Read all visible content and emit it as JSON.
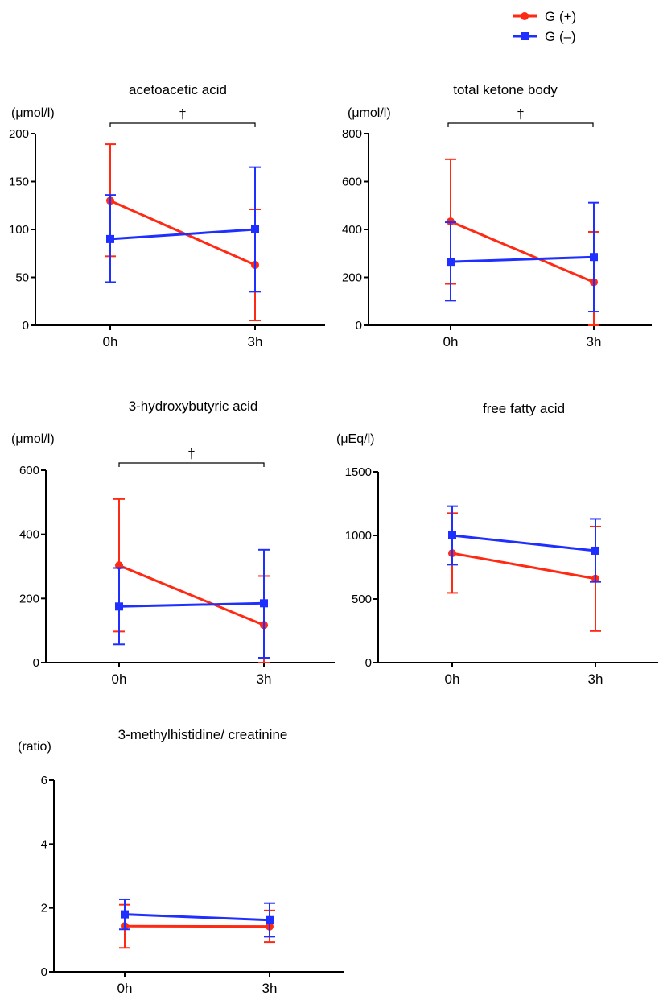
{
  "legend": {
    "entries": [
      {
        "label": "G (+)",
        "color": "#ff2a14",
        "marker": "circle"
      },
      {
        "label": "G (–)",
        "color": "#1e2fff",
        "marker": "square"
      }
    ]
  },
  "colors": {
    "g_plus": "#ff2a14",
    "g_minus": "#1e2fff",
    "axis": "#000000"
  },
  "chart_data": [
    {
      "type": "line",
      "title": "acetoacetic acid",
      "unit": "(μmol/l)",
      "categories": [
        "0h",
        "3h"
      ],
      "ylim": [
        0,
        200
      ],
      "yticks": [
        0,
        50,
        100,
        150,
        200
      ],
      "significance": "†",
      "series": [
        {
          "name": "G (+)",
          "values": [
            130,
            63
          ],
          "err_upper": [
            189,
            121
          ],
          "err_lower": [
            72,
            5
          ]
        },
        {
          "name": "G (–)",
          "values": [
            90,
            100
          ],
          "err_upper": [
            136,
            165
          ],
          "err_lower": [
            45,
            35
          ]
        }
      ]
    },
    {
      "type": "line",
      "title": "total ketone body",
      "unit": "(μmol/l)",
      "categories": [
        "0h",
        "3h"
      ],
      "ylim": [
        0,
        800
      ],
      "yticks": [
        0,
        200,
        400,
        600,
        800
      ],
      "significance": "†",
      "series": [
        {
          "name": "G (+)",
          "values": [
            433,
            180
          ],
          "err_upper": [
            693,
            390
          ],
          "err_lower": [
            173,
            0
          ]
        },
        {
          "name": "G (–)",
          "values": [
            265,
            285
          ],
          "err_upper": [
            430,
            512
          ],
          "err_lower": [
            103,
            57
          ]
        }
      ]
    },
    {
      "type": "line",
      "title": "3-hydroxybutyric acid",
      "unit": "(μmol/l)",
      "categories": [
        "0h",
        "3h"
      ],
      "ylim": [
        0,
        600
      ],
      "yticks": [
        0,
        200,
        400,
        600
      ],
      "significance": "†",
      "series": [
        {
          "name": "G (+)",
          "values": [
            303,
            117
          ],
          "err_upper": [
            510,
            270
          ],
          "err_lower": [
            97,
            0
          ]
        },
        {
          "name": "G (–)",
          "values": [
            175,
            185
          ],
          "err_upper": [
            295,
            352
          ],
          "err_lower": [
            57,
            15
          ]
        }
      ]
    },
    {
      "type": "line",
      "title": "free fatty acid",
      "unit": "(μEq/l)",
      "categories": [
        "0h",
        "3h"
      ],
      "ylim": [
        0,
        1500
      ],
      "yticks": [
        0,
        500,
        1000,
        1500
      ],
      "significance": "",
      "series": [
        {
          "name": "G (+)",
          "values": [
            860,
            660
          ],
          "err_upper": [
            1175,
            1070
          ],
          "err_lower": [
            548,
            248
          ]
        },
        {
          "name": "G (–)",
          "values": [
            1000,
            880
          ],
          "err_upper": [
            1230,
            1130
          ],
          "err_lower": [
            770,
            635
          ]
        }
      ]
    },
    {
      "type": "line",
      "title": "3-methylhistidine/ creatinine",
      "unit": "(ratio)",
      "categories": [
        "0h",
        "3h"
      ],
      "ylim": [
        0,
        6
      ],
      "yticks": [
        0,
        2,
        4,
        6
      ],
      "significance": "",
      "series": [
        {
          "name": "G (+)",
          "values": [
            1.43,
            1.42
          ],
          "err_upper": [
            2.1,
            1.92
          ],
          "err_lower": [
            0.75,
            0.93
          ]
        },
        {
          "name": "G (–)",
          "values": [
            1.8,
            1.62
          ],
          "err_upper": [
            2.27,
            2.15
          ],
          "err_lower": [
            1.33,
            1.1
          ]
        }
      ]
    }
  ]
}
